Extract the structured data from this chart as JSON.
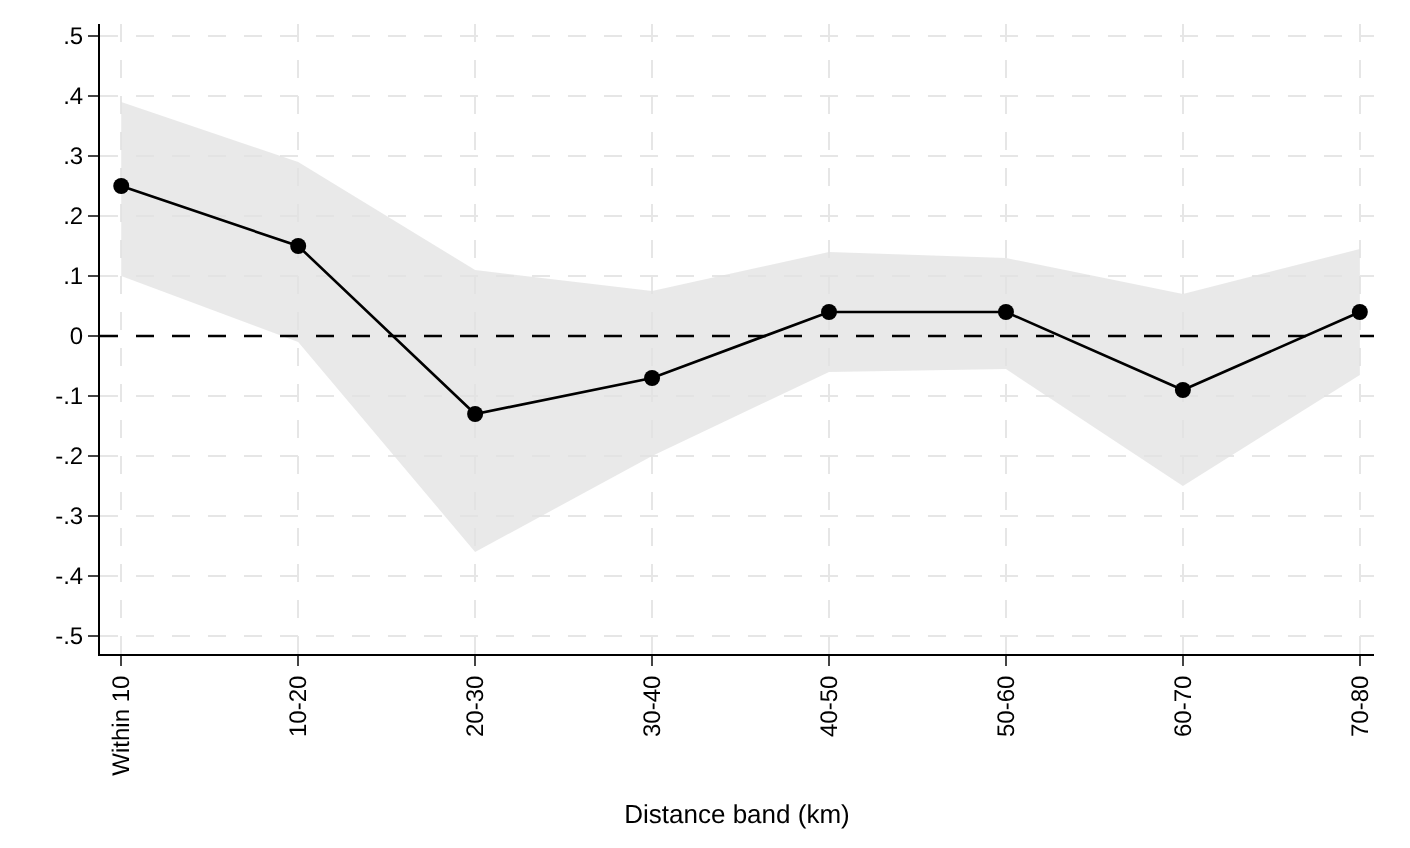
{
  "chart_data": {
    "type": "line",
    "xlabel": "Distance band (km)",
    "categories": [
      "Within 10",
      "10-20",
      "20-30",
      "30-40",
      "40-50",
      "50-60",
      "60-70",
      "70-80"
    ],
    "series": [
      {
        "color": "#000000",
        "values": [
          0.25,
          0.15,
          -0.13,
          -0.07,
          0.04,
          0.04,
          -0.09,
          0.04
        ],
        "lower": [
          0.1,
          -0.01,
          -0.36,
          -0.2,
          -0.06,
          -0.055,
          -0.25,
          -0.065
        ],
        "upper": [
          0.39,
          0.29,
          0.11,
          0.075,
          0.14,
          0.13,
          0.07,
          0.145
        ]
      }
    ],
    "ylim": [
      -0.53,
      0.52
    ],
    "yticks": [
      {
        "value": -0.5,
        "label": "-.5"
      },
      {
        "value": -0.4,
        "label": "-.4"
      },
      {
        "value": -0.3,
        "label": "-.3"
      },
      {
        "value": -0.2,
        "label": "-.2"
      },
      {
        "value": -0.1,
        "label": "-.1"
      },
      0,
      {
        "value": 0.1,
        "label": ".1"
      },
      {
        "value": 0.2,
        "label": ".2"
      },
      {
        "value": 0.3,
        "label": ".3"
      },
      {
        "value": 0.4,
        "label": ".4"
      },
      {
        "value": 0.5,
        "label": ".5"
      }
    ],
    "ref_lines": [
      {
        "axis": "y",
        "value": 0,
        "color": "#000000",
        "line_style": "dashed"
      }
    ],
    "grid": true,
    "marker": "circle",
    "line_style": "solid"
  }
}
